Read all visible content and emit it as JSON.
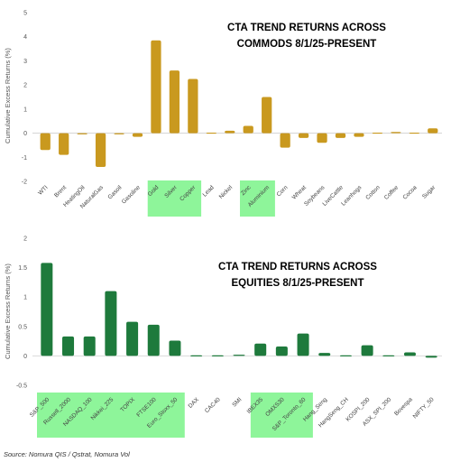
{
  "chart_data": [
    {
      "type": "bar",
      "title_line1": "CTA TREND RETURNS ACROSS",
      "title_line2": "COMMODS 8/1/25-PRESENT",
      "ylabel": "Cumulative Excess Returns (%)",
      "xlabel": "",
      "ylim": [
        -2,
        5
      ],
      "yticks": [
        -2,
        -1,
        0,
        1,
        2,
        3,
        4,
        5
      ],
      "grid": false,
      "bar_color": "#C9991F",
      "highlight_color": "#8EF59A",
      "highlight_groups": [
        [
          "Gold",
          "Silver",
          "Copper"
        ],
        [
          "Zinc",
          "Aluminium"
        ]
      ],
      "categories": [
        "WTI",
        "Brent",
        "HeatingOil",
        "NaturalGas",
        "Gasoil",
        "Gasoline",
        "Gold",
        "Silver",
        "Copper",
        "Lead",
        "Nickel",
        "Zinc",
        "Aluminium",
        "Corn",
        "Wheat",
        "Soybeans",
        "LiveCattle",
        "Leanhogs",
        "Cotton",
        "Coffee",
        "Cocoa",
        "Sugar"
      ],
      "values": [
        -0.7,
        -0.9,
        -0.05,
        -1.4,
        -0.05,
        -0.15,
        3.85,
        2.6,
        2.25,
        -0.02,
        0.1,
        0.3,
        1.5,
        -0.6,
        -0.2,
        -0.4,
        -0.2,
        -0.15,
        0.0,
        0.05,
        0.03,
        0.2
      ]
    },
    {
      "type": "bar",
      "title_line1": "CTA TREND RETURNS ACROSS",
      "title_line2": "EQUITIES 8/1/25-PRESENT",
      "ylabel": "Cumulative Excess Returns (%)",
      "xlabel": "",
      "ylim": [
        -0.5,
        2
      ],
      "yticks": [
        -0.5,
        0,
        0.5,
        1,
        1.5,
        2
      ],
      "grid": false,
      "bar_color": "#1E7A3C",
      "highlight_color": "#8EF59A",
      "highlight_groups": [
        [
          "S&P_500",
          "Russell_2000",
          "NASDAQ_100",
          "Nikkei_225",
          "TOPIX",
          "FTSE100",
          "Euro_Stoxx_50"
        ],
        [
          "IBEX35",
          "OMXS30",
          "S&P_Toronto_60"
        ]
      ],
      "categories": [
        "S&P_500",
        "Russell_2000",
        "NASDAQ_100",
        "Nikkei_225",
        "TOPIX",
        "FTSE100",
        "Euro_Stoxx_50",
        "DAX",
        "CAC40",
        "SMI",
        "IBEX35",
        "OMXS30",
        "S&P_Toronto_60",
        "Hang_Seng",
        "HangSeng_CH",
        "KOSPI_200",
        "ASX_SPI_200",
        "Bovespa",
        "NIFTY_50"
      ],
      "values": [
        1.58,
        0.33,
        0.33,
        1.1,
        0.58,
        0.53,
        0.26,
        0.005,
        -0.005,
        0.02,
        0.21,
        0.16,
        0.38,
        0.05,
        0.01,
        0.18,
        -0.01,
        0.06,
        -0.03
      ]
    }
  ],
  "source": "Source: Nomura QIS / Qstrat, Nomura Vol"
}
